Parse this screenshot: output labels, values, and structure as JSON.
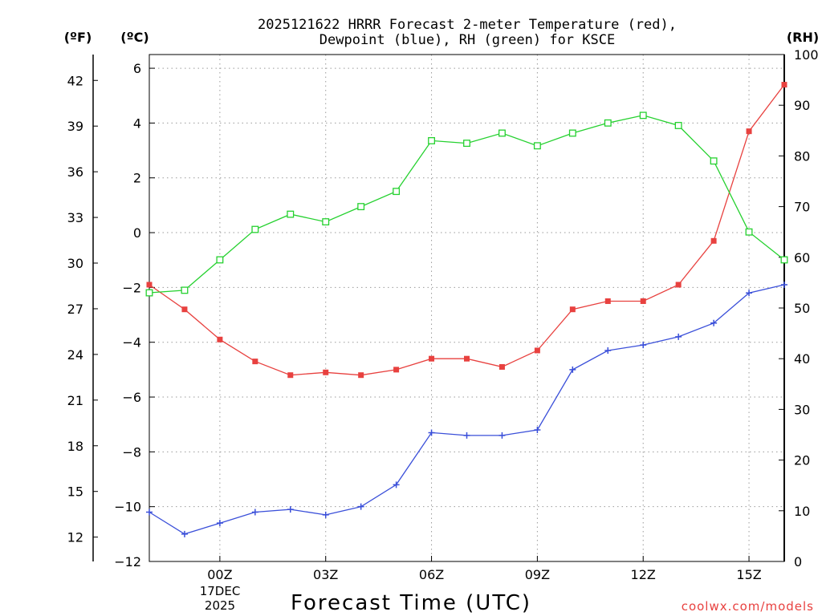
{
  "chart_data": {
    "type": "line",
    "title_line1": "2025121622 HRRR Forecast 2-meter Temperature (red),",
    "title_line2": "Dewpoint (blue), RH (green) for KSCE",
    "xlabel": "Forecast Time (UTC)",
    "date_line1": "17DEC",
    "date_line2": "2025",
    "credit": "coolwx.com/models",
    "units": {
      "fahrenheit": "(ºF)",
      "celsius": "(ºC)",
      "rh": "(RH)"
    },
    "x_ticks": [
      "00Z",
      "03Z",
      "06Z",
      "09Z",
      "12Z",
      "15Z"
    ],
    "x_tick_hours": [
      2,
      5,
      8,
      11,
      14,
      17
    ],
    "x_range": [
      0,
      18
    ],
    "x_hours": [
      0,
      1,
      2,
      3,
      4,
      5,
      6,
      7,
      8,
      9,
      10,
      11,
      12,
      13,
      14,
      15,
      16,
      17,
      18
    ],
    "celsius_ylim": [
      -12,
      6.5
    ],
    "celsius_ticks": [
      "6",
      "4",
      "2",
      "0",
      "−2",
      "−4",
      "−6",
      "−8",
      "−10",
      "−12"
    ],
    "celsius_tick_values": [
      6,
      4,
      2,
      0,
      -2,
      -4,
      -6,
      -8,
      -10,
      -12
    ],
    "fahrenheit_ticks": [
      "42",
      "39",
      "36",
      "33",
      "30",
      "27",
      "24",
      "21",
      "18",
      "15",
      "12"
    ],
    "fahrenheit_tick_values": [
      42,
      39,
      36,
      33,
      30,
      27,
      24,
      21,
      18,
      15,
      12
    ],
    "rh_ylim": [
      0,
      100
    ],
    "rh_ticks": [
      "100",
      "90",
      "80",
      "70",
      "60",
      "50",
      "40",
      "30",
      "20",
      "10",
      "0"
    ],
    "rh_tick_values": [
      100,
      90,
      80,
      70,
      60,
      50,
      40,
      30,
      20,
      10,
      0
    ],
    "series": [
      {
        "name": "Temperature",
        "unit": "C",
        "color": "#e8413f",
        "marker": "filled-square",
        "values": [
          -1.9,
          -2.8,
          -3.9,
          -4.7,
          -5.2,
          -5.1,
          -5.2,
          -5.0,
          -4.6,
          -4.6,
          -4.9,
          -4.3,
          -2.8,
          -2.5,
          -2.5,
          -1.9,
          -0.3,
          3.7,
          5.4
        ]
      },
      {
        "name": "Dewpoint",
        "unit": "C",
        "color": "#3a4fd9",
        "marker": "plus",
        "values": [
          -10.2,
          -11.0,
          -10.6,
          -10.2,
          -10.1,
          -10.3,
          -10.0,
          -9.2,
          -7.3,
          -7.4,
          -7.4,
          -7.2,
          -5.0,
          -4.3,
          -4.1,
          -3.8,
          -3.3,
          -2.2,
          -1.9
        ]
      },
      {
        "name": "RH",
        "unit": "%",
        "color": "#25d12f",
        "marker": "open-square",
        "values": [
          53,
          53.5,
          59.5,
          65.5,
          68.5,
          67,
          70,
          73,
          83,
          82.5,
          84.5,
          82,
          84.5,
          86.5,
          88,
          86,
          79,
          65,
          59.5
        ]
      }
    ]
  }
}
